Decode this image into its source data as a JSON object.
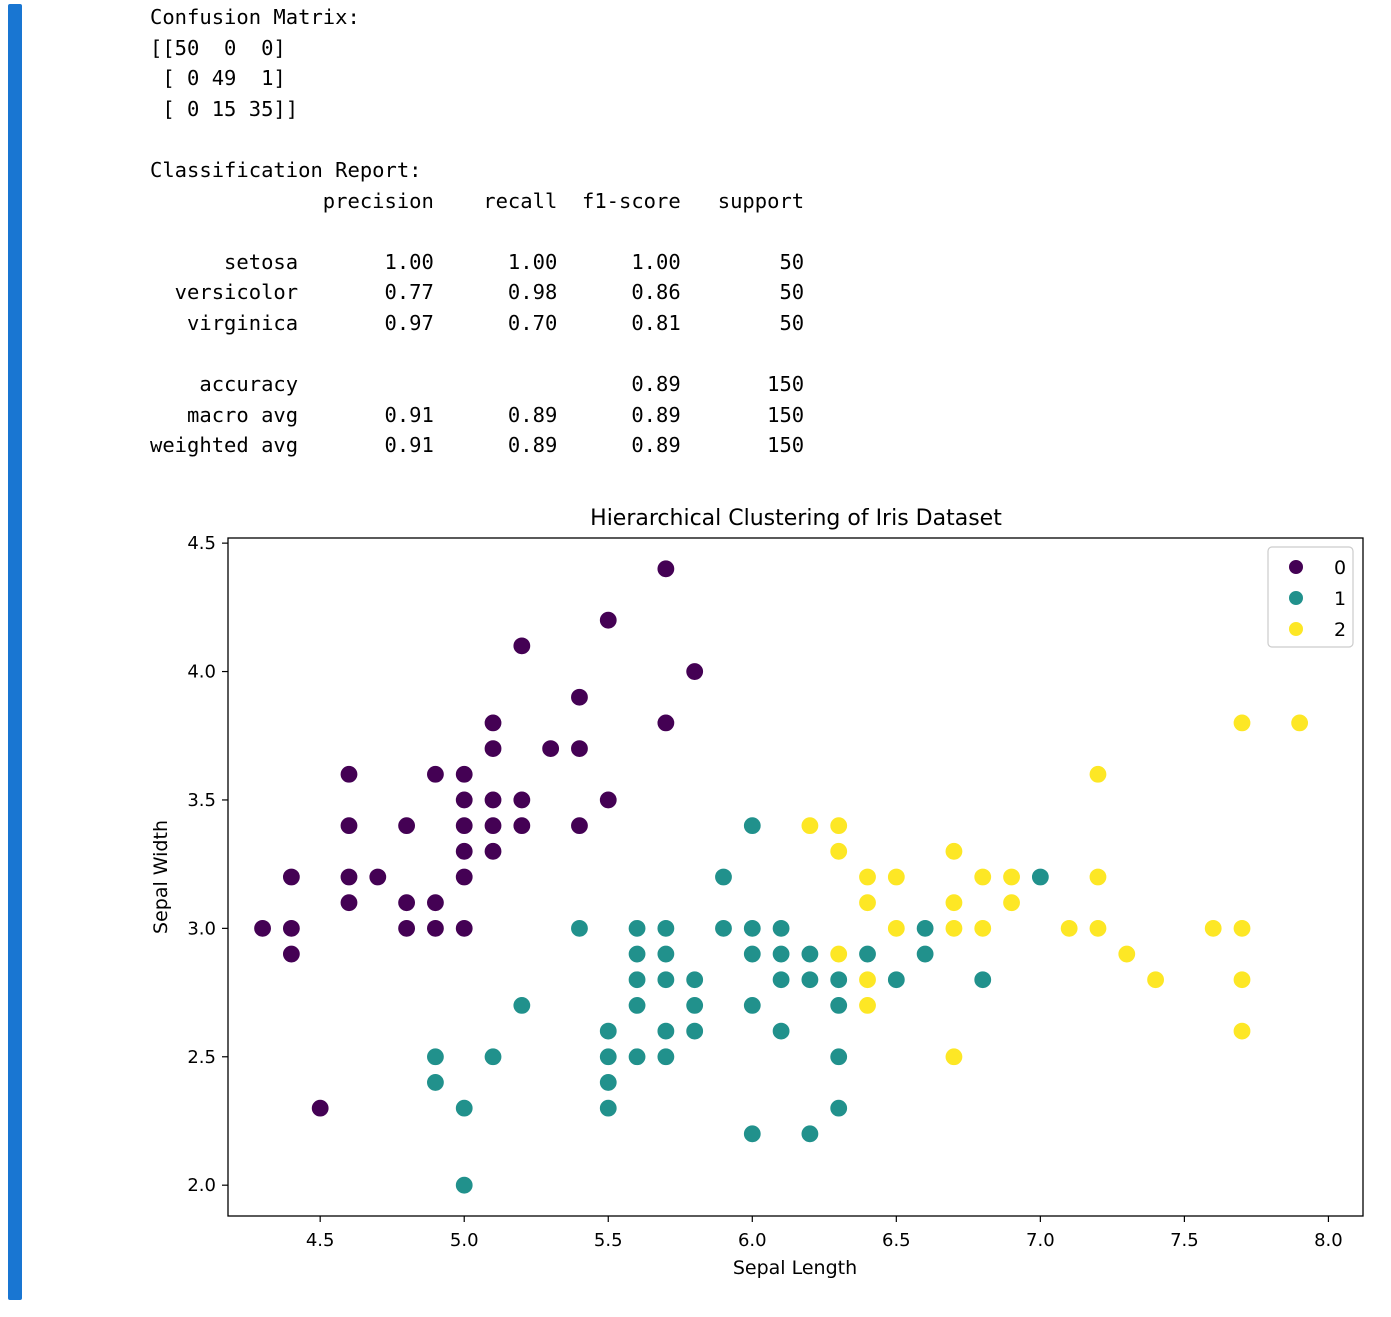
{
  "output": {
    "confusion_title": "Confusion Matrix:",
    "matrix_rows": [
      "[[50  0  0]",
      " [ 0 49  1]",
      " [ 0 15 35]]"
    ],
    "report_title": "Classification Report:",
    "report_header": "              precision    recall  f1-score   support",
    "report_rows": [
      "      setosa       1.00      1.00      1.00        50",
      "  versicolor       0.77      0.98      0.86        50",
      "   virginica       0.97      0.70      0.81        50"
    ],
    "summary_rows": [
      "    accuracy                           0.89       150",
      "   macro avg       0.91      0.89      0.89       150",
      "weighted avg       0.91      0.89      0.89       150"
    ]
  },
  "chart_data": {
    "type": "scatter",
    "title": "Hierarchical Clustering of Iris Dataset",
    "xlabel": "Sepal Length",
    "ylabel": "Sepal Width",
    "xlim": [
      4.18,
      8.12
    ],
    "ylim": [
      1.88,
      4.52
    ],
    "xticks": [
      "4.5",
      "5.0",
      "5.5",
      "6.0",
      "6.5",
      "7.0",
      "7.5",
      "8.0"
    ],
    "yticks": [
      "2.0",
      "2.5",
      "3.0",
      "3.5",
      "4.0",
      "4.5"
    ],
    "legend_position": "top-right",
    "series": [
      {
        "name": "0",
        "color": "#440154",
        "points": [
          [
            5.7,
            4.4
          ],
          [
            5.5,
            4.2
          ],
          [
            5.2,
            4.1
          ],
          [
            5.8,
            4.0
          ],
          [
            5.4,
            3.9
          ],
          [
            5.1,
            3.8
          ],
          [
            5.7,
            3.8
          ],
          [
            5.1,
            3.7
          ],
          [
            5.3,
            3.7
          ],
          [
            5.4,
            3.7
          ],
          [
            4.6,
            3.6
          ],
          [
            4.9,
            3.6
          ],
          [
            5.0,
            3.6
          ],
          [
            5.0,
            3.5
          ],
          [
            5.1,
            3.5
          ],
          [
            5.2,
            3.5
          ],
          [
            5.5,
            3.5
          ],
          [
            4.6,
            3.4
          ],
          [
            4.8,
            3.4
          ],
          [
            5.0,
            3.4
          ],
          [
            5.1,
            3.4
          ],
          [
            5.2,
            3.4
          ],
          [
            5.4,
            3.4
          ],
          [
            5.0,
            3.3
          ],
          [
            5.1,
            3.3
          ],
          [
            4.4,
            3.2
          ],
          [
            4.6,
            3.2
          ],
          [
            4.7,
            3.2
          ],
          [
            5.0,
            3.2
          ],
          [
            4.6,
            3.1
          ],
          [
            4.8,
            3.1
          ],
          [
            4.9,
            3.1
          ],
          [
            4.3,
            3.0
          ],
          [
            4.4,
            3.0
          ],
          [
            4.8,
            3.0
          ],
          [
            4.9,
            3.0
          ],
          [
            5.0,
            3.0
          ],
          [
            4.4,
            2.9
          ],
          [
            4.5,
            2.3
          ]
        ]
      },
      {
        "name": "1",
        "color": "#21918c",
        "points": [
          [
            6.0,
            3.4
          ],
          [
            5.9,
            3.2
          ],
          [
            7.0,
            3.2
          ],
          [
            5.4,
            3.0
          ],
          [
            5.6,
            3.0
          ],
          [
            5.7,
            3.0
          ],
          [
            5.9,
            3.0
          ],
          [
            6.0,
            3.0
          ],
          [
            6.1,
            3.0
          ],
          [
            6.6,
            3.0
          ],
          [
            5.6,
            2.9
          ],
          [
            5.7,
            2.9
          ],
          [
            6.0,
            2.9
          ],
          [
            6.1,
            2.9
          ],
          [
            6.2,
            2.9
          ],
          [
            6.4,
            2.9
          ],
          [
            6.6,
            2.9
          ],
          [
            5.6,
            2.8
          ],
          [
            5.7,
            2.8
          ],
          [
            5.8,
            2.8
          ],
          [
            6.1,
            2.8
          ],
          [
            6.2,
            2.8
          ],
          [
            6.3,
            2.8
          ],
          [
            6.5,
            2.8
          ],
          [
            6.8,
            2.8
          ],
          [
            5.2,
            2.7
          ],
          [
            5.6,
            2.7
          ],
          [
            5.8,
            2.7
          ],
          [
            6.0,
            2.7
          ],
          [
            6.3,
            2.7
          ],
          [
            5.5,
            2.6
          ],
          [
            5.7,
            2.6
          ],
          [
            5.8,
            2.6
          ],
          [
            6.1,
            2.6
          ],
          [
            4.9,
            2.5
          ],
          [
            5.1,
            2.5
          ],
          [
            5.5,
            2.5
          ],
          [
            5.6,
            2.5
          ],
          [
            5.7,
            2.5
          ],
          [
            6.3,
            2.5
          ],
          [
            4.9,
            2.4
          ],
          [
            5.5,
            2.4
          ],
          [
            5.0,
            2.3
          ],
          [
            5.5,
            2.3
          ],
          [
            6.3,
            2.3
          ],
          [
            6.0,
            2.2
          ],
          [
            6.2,
            2.2
          ],
          [
            5.0,
            2.0
          ]
        ]
      },
      {
        "name": "2",
        "color": "#fde725",
        "points": [
          [
            7.7,
            3.8
          ],
          [
            7.9,
            3.8
          ],
          [
            7.2,
            3.6
          ],
          [
            6.2,
            3.4
          ],
          [
            6.3,
            3.4
          ],
          [
            6.3,
            3.3
          ],
          [
            6.7,
            3.3
          ],
          [
            6.4,
            3.2
          ],
          [
            6.5,
            3.2
          ],
          [
            6.8,
            3.2
          ],
          [
            6.9,
            3.2
          ],
          [
            7.2,
            3.2
          ],
          [
            6.4,
            3.1
          ],
          [
            6.7,
            3.1
          ],
          [
            6.9,
            3.1
          ],
          [
            6.5,
            3.0
          ],
          [
            6.7,
            3.0
          ],
          [
            6.8,
            3.0
          ],
          [
            7.1,
            3.0
          ],
          [
            7.2,
            3.0
          ],
          [
            7.6,
            3.0
          ],
          [
            7.7,
            3.0
          ],
          [
            6.3,
            2.9
          ],
          [
            7.3,
            2.9
          ],
          [
            6.4,
            2.8
          ],
          [
            7.4,
            2.8
          ],
          [
            7.7,
            2.8
          ],
          [
            6.4,
            2.7
          ],
          [
            7.7,
            2.6
          ],
          [
            6.7,
            2.5
          ]
        ]
      }
    ]
  }
}
